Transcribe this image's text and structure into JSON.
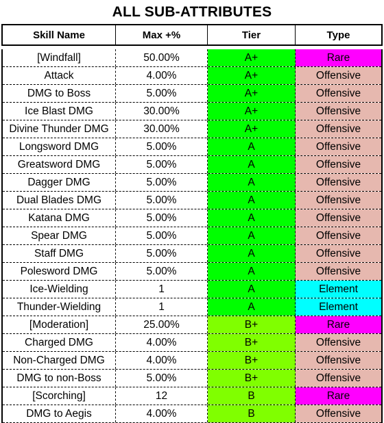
{
  "title": "ALL SUB-ATTRIBUTES",
  "columns": [
    "Skill Name",
    "Max +%",
    "Tier",
    "Type"
  ],
  "colors": {
    "tier": {
      "A+": "#00ff00",
      "A": "#00ff00",
      "B+": "#80ff00",
      "B": "#80ff00"
    },
    "type": {
      "Rare": "#ff00ff",
      "Offensive": "#e6b8af",
      "Element": "#00ffff"
    }
  },
  "rows": [
    {
      "skill": "[Windfall]",
      "max": "50.00%",
      "tier": "A+",
      "type": "Rare"
    },
    {
      "skill": "Attack",
      "max": "4.00%",
      "tier": "A+",
      "type": "Offensive"
    },
    {
      "skill": "DMG to Boss",
      "max": "5.00%",
      "tier": "A+",
      "type": "Offensive"
    },
    {
      "skill": "Ice Blast DMG",
      "max": "30.00%",
      "tier": "A+",
      "type": "Offensive"
    },
    {
      "skill": "Divine Thunder DMG",
      "max": "30.00%",
      "tier": "A+",
      "type": "Offensive"
    },
    {
      "skill": "Longsword DMG",
      "max": "5.00%",
      "tier": "A",
      "type": "Offensive"
    },
    {
      "skill": "Greatsword DMG",
      "max": "5.00%",
      "tier": "A",
      "type": "Offensive"
    },
    {
      "skill": "Dagger DMG",
      "max": "5.00%",
      "tier": "A",
      "type": "Offensive"
    },
    {
      "skill": "Dual Blades DMG",
      "max": "5.00%",
      "tier": "A",
      "type": "Offensive"
    },
    {
      "skill": "Katana DMG",
      "max": "5.00%",
      "tier": "A",
      "type": "Offensive"
    },
    {
      "skill": "Spear DMG",
      "max": "5.00%",
      "tier": "A",
      "type": "Offensive"
    },
    {
      "skill": "Staff DMG",
      "max": "5.00%",
      "tier": "A",
      "type": "Offensive"
    },
    {
      "skill": "Polesword DMG",
      "max": "5.00%",
      "tier": "A",
      "type": "Offensive"
    },
    {
      "skill": "Ice-Wielding",
      "max": "1",
      "tier": "A",
      "type": "Element"
    },
    {
      "skill": "Thunder-Wielding",
      "max": "1",
      "tier": "A",
      "type": "Element"
    },
    {
      "skill": "[Moderation]",
      "max": "25.00%",
      "tier": "B+",
      "type": "Rare"
    },
    {
      "skill": "Charged DMG",
      "max": "4.00%",
      "tier": "B+",
      "type": "Offensive"
    },
    {
      "skill": "Non-Charged DMG",
      "max": "4.00%",
      "tier": "B+",
      "type": "Offensive"
    },
    {
      "skill": "DMG to non-Boss",
      "max": "5.00%",
      "tier": "B+",
      "type": "Offensive"
    },
    {
      "skill": "[Scorching]",
      "max": "12",
      "tier": "B",
      "type": "Rare"
    },
    {
      "skill": "DMG to Aegis",
      "max": "4.00%",
      "tier": "B",
      "type": "Offensive"
    }
  ]
}
